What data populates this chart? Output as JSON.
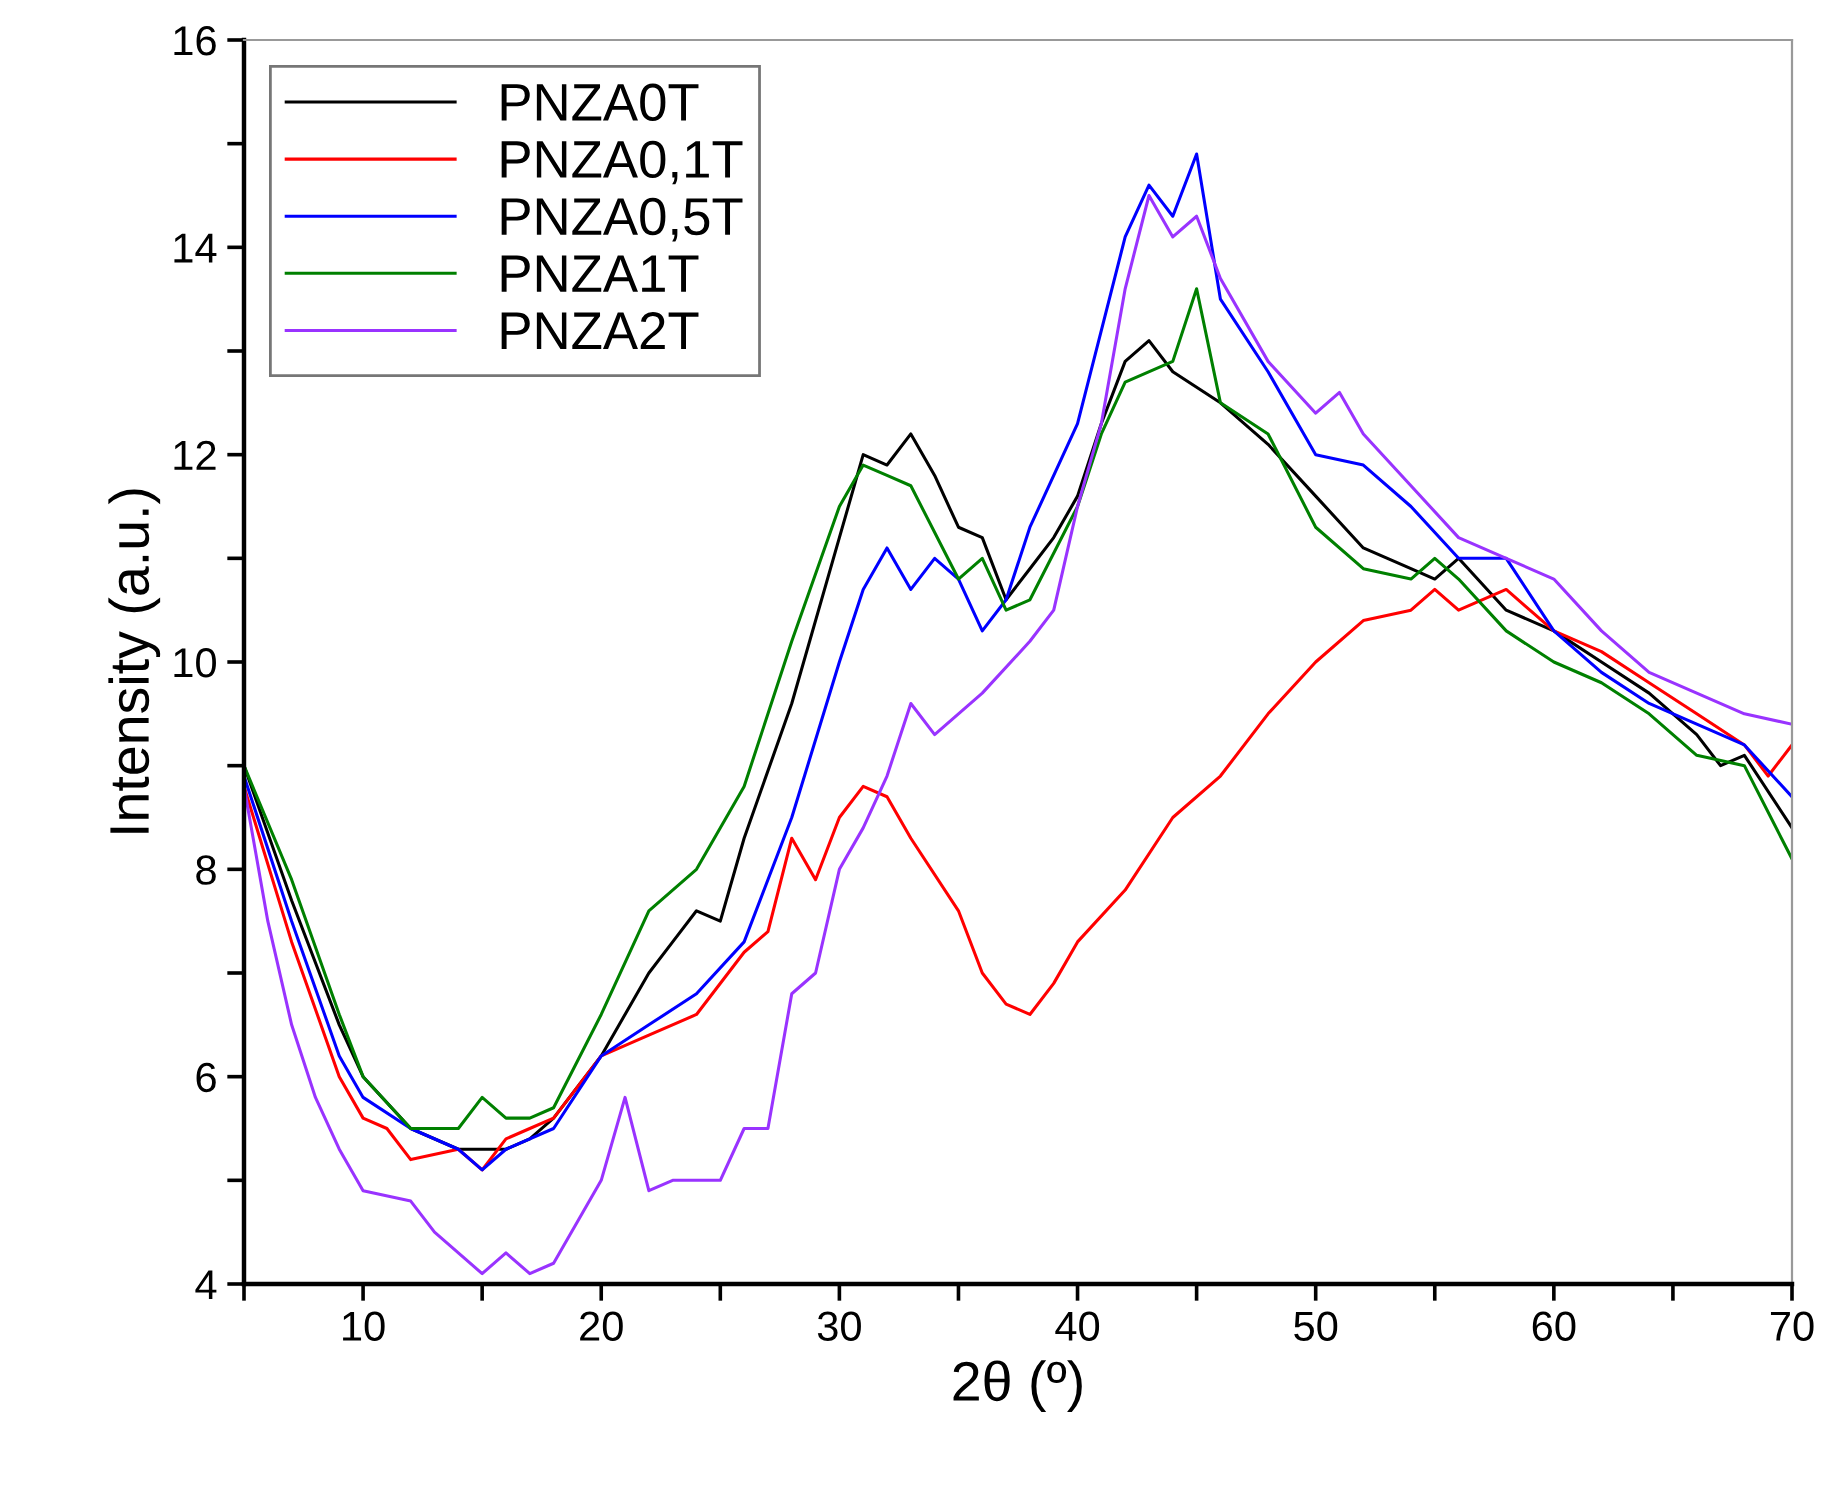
{
  "chart_data": {
    "type": "line",
    "xlabel": "2θ (º)",
    "ylabel": "Intensity (a.u.)",
    "xlim": [
      5,
      70
    ],
    "ylim": [
      4,
      16
    ],
    "xticks": [
      {
        "value": 5,
        "label": null
      },
      10,
      {
        "value": 15,
        "label": null
      },
      20,
      {
        "value": 25,
        "label": null
      },
      30,
      {
        "value": 35,
        "label": null
      },
      40,
      {
        "value": 45,
        "label": null
      },
      50,
      {
        "value": 55,
        "label": null
      },
      60,
      {
        "value": 65,
        "label": null
      },
      70
    ],
    "yticks": [
      4,
      {
        "value": 5,
        "label": null
      },
      6,
      {
        "value": 7,
        "label": null
      },
      8,
      {
        "value": 9,
        "label": null
      },
      10,
      {
        "value": 11,
        "label": null
      },
      12,
      {
        "value": 13,
        "label": null
      },
      14,
      {
        "value": 15,
        "label": null
      },
      16
    ],
    "grid": false,
    "legend": "top left",
    "marker": "none",
    "line_style": "solid",
    "series": [
      {
        "name": "PNZA0T",
        "color": "#000000",
        "x": [
          5,
          7,
          9,
          10,
          12,
          14,
          16,
          17,
          18,
          20,
          22,
          23,
          24,
          25,
          26,
          28,
          30,
          31,
          32,
          33,
          34,
          35,
          36,
          37,
          38,
          39,
          40,
          41,
          42,
          43,
          44,
          46,
          48,
          50,
          52,
          54,
          55,
          56,
          58,
          60,
          62,
          64,
          66,
          67,
          68,
          70
        ],
        "values": [
          9.0,
          7.7,
          6.5,
          6.0,
          5.5,
          5.3,
          5.3,
          5.4,
          5.6,
          6.2,
          7.0,
          7.3,
          7.6,
          7.5,
          8.3,
          9.6,
          11.2,
          12.0,
          11.9,
          12.2,
          11.8,
          11.3,
          11.2,
          10.6,
          10.9,
          11.2,
          11.6,
          12.3,
          12.9,
          13.1,
          12.8,
          12.5,
          12.1,
          11.6,
          11.1,
          10.9,
          10.8,
          11.0,
          10.5,
          10.3,
          10.0,
          9.7,
          9.3,
          9.0,
          9.1,
          8.4
        ]
      },
      {
        "name": "PNZA0,1T",
        "color": "#ff0000",
        "x": [
          5,
          7,
          9,
          10,
          11,
          12,
          14,
          15,
          16,
          17,
          18,
          20,
          22,
          24,
          26,
          27,
          28,
          29,
          30,
          31,
          32,
          33,
          35,
          36,
          37,
          38,
          39,
          40,
          42,
          44,
          46,
          48,
          50,
          52,
          54,
          55,
          56,
          58,
          60,
          62,
          64,
          66,
          68,
          69,
          70
        ],
        "values": [
          8.8,
          7.3,
          6.0,
          5.6,
          5.5,
          5.2,
          5.3,
          5.1,
          5.4,
          5.5,
          5.6,
          6.2,
          6.4,
          6.6,
          7.2,
          7.4,
          8.3,
          7.9,
          8.5,
          8.8,
          8.7,
          8.3,
          7.6,
          7.0,
          6.7,
          6.6,
          6.9,
          7.3,
          7.8,
          8.5,
          8.9,
          9.5,
          10.0,
          10.4,
          10.5,
          10.7,
          10.5,
          10.7,
          10.3,
          10.1,
          9.8,
          9.5,
          9.2,
          8.9,
          9.2
        ]
      },
      {
        "name": "PNZA0,5T",
        "color": "#0000ff",
        "x": [
          5,
          7,
          9,
          10,
          12,
          14,
          15,
          16,
          18,
          20,
          22,
          24,
          26,
          28,
          30,
          31,
          32,
          33,
          34,
          35,
          36,
          37,
          38,
          40,
          41,
          42,
          43,
          44,
          45,
          46,
          48,
          50,
          52,
          54,
          56,
          58,
          60,
          62,
          64,
          66,
          68,
          70
        ],
        "values": [
          8.9,
          7.5,
          6.2,
          5.8,
          5.5,
          5.3,
          5.1,
          5.3,
          5.5,
          6.2,
          6.5,
          6.8,
          7.3,
          8.5,
          10.0,
          10.7,
          11.1,
          10.7,
          11.0,
          10.8,
          10.3,
          10.6,
          11.3,
          12.3,
          13.2,
          14.1,
          14.6,
          14.3,
          14.9,
          13.5,
          12.8,
          12.0,
          11.9,
          11.5,
          11.0,
          11.0,
          10.3,
          9.9,
          9.6,
          9.4,
          9.2,
          8.7
        ]
      },
      {
        "name": "PNZA1T",
        "color": "#008000",
        "x": [
          5,
          7,
          9,
          10,
          12,
          14,
          15,
          16,
          17,
          18,
          20,
          22,
          24,
          26,
          28,
          30,
          31,
          32,
          33,
          35,
          36,
          37,
          38,
          40,
          41,
          42,
          44,
          45,
          46,
          48,
          50,
          52,
          54,
          55,
          56,
          58,
          60,
          62,
          64,
          66,
          68,
          70
        ],
        "values": [
          9.0,
          7.9,
          6.6,
          6.0,
          5.5,
          5.5,
          5.8,
          5.6,
          5.6,
          5.7,
          6.6,
          7.6,
          8.0,
          8.8,
          10.2,
          11.5,
          11.9,
          11.8,
          11.7,
          10.8,
          11.0,
          10.5,
          10.6,
          11.5,
          12.2,
          12.7,
          12.9,
          13.6,
          12.5,
          12.2,
          11.3,
          10.9,
          10.8,
          11.0,
          10.8,
          10.3,
          10.0,
          9.8,
          9.5,
          9.1,
          9.0,
          8.1
        ]
      },
      {
        "name": "PNZA2T",
        "color": "#9933ff",
        "x": [
          5,
          6,
          7,
          8,
          9,
          10,
          12,
          13,
          14,
          15,
          16,
          17,
          18,
          19,
          20,
          21,
          22,
          23,
          25,
          26,
          27,
          28,
          29,
          30,
          31,
          32,
          33,
          34,
          36,
          38,
          39,
          40,
          41,
          42,
          43,
          44,
          45,
          46,
          48,
          50,
          51,
          52,
          54,
          56,
          58,
          60,
          62,
          64,
          66,
          68,
          70
        ],
        "values": [
          8.8,
          7.5,
          6.5,
          5.8,
          5.3,
          4.9,
          4.8,
          4.5,
          4.3,
          4.1,
          4.3,
          4.1,
          4.2,
          4.6,
          5.0,
          5.8,
          4.9,
          5.0,
          5.0,
          5.5,
          5.5,
          6.8,
          7.0,
          8.0,
          8.4,
          8.9,
          9.6,
          9.3,
          9.7,
          10.2,
          10.5,
          11.5,
          12.3,
          13.6,
          14.5,
          14.1,
          14.3,
          13.7,
          12.9,
          12.4,
          12.6,
          12.2,
          11.7,
          11.2,
          11.0,
          10.8,
          10.3,
          9.9,
          9.7,
          9.5,
          9.4
        ]
      }
    ]
  }
}
